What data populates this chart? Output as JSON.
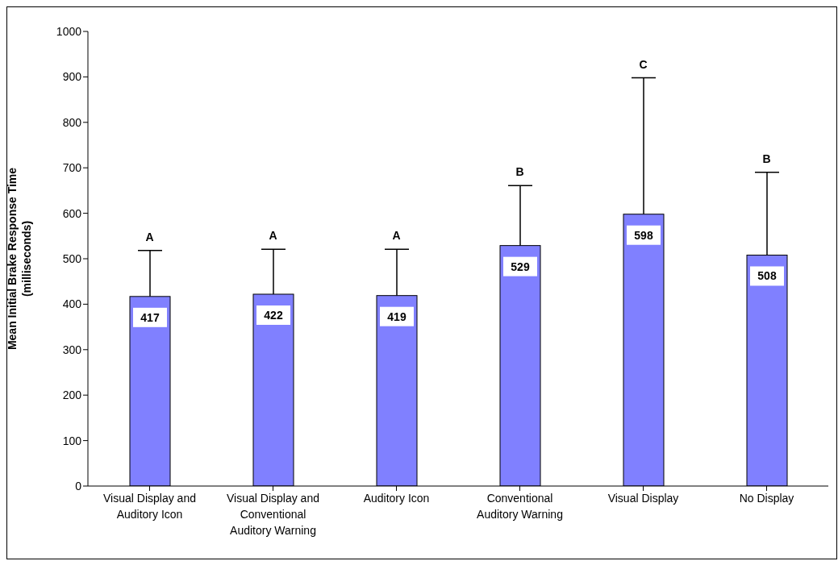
{
  "chart_data": {
    "type": "bar",
    "ylabel": "Mean Initial Brake Response Time\n(milliseconds)",
    "categories": [
      "Visual Display and Auditory Icon",
      "Visual Display and Conventional Auditory Warning",
      "Auditory Icon",
      "Conventional Auditory Warning",
      "Visual Display",
      "No Display"
    ],
    "values": [
      417,
      422,
      419,
      529,
      598,
      508
    ],
    "errors": [
      [
        417,
        518
      ],
      [
        422,
        521
      ],
      [
        419,
        521
      ],
      [
        529,
        661
      ],
      [
        598,
        898
      ],
      [
        508,
        690
      ]
    ],
    "color": "#8080ff",
    "data_labels": true,
    "ylim": [
      0,
      1000
    ],
    "yticks": [
      0,
      100,
      200,
      300,
      400,
      500,
      600,
      700,
      800,
      900,
      1000
    ],
    "annotations": [
      "A",
      "A",
      "A",
      "B",
      "C",
      "B"
    ]
  }
}
